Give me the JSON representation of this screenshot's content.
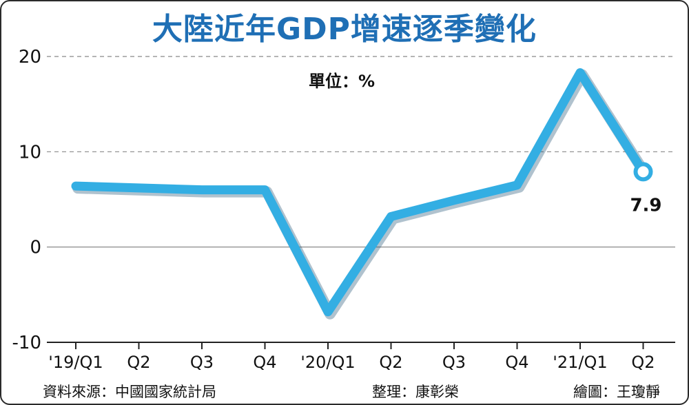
{
  "chart_data": {
    "type": "line",
    "title": "大陸近年GDP增速逐季變化",
    "unit_label": "單位：%",
    "categories": [
      "'19/Q1",
      "Q2",
      "Q3",
      "Q4",
      "'20/Q1",
      "Q2",
      "Q3",
      "Q4",
      "'21/Q1",
      "Q2"
    ],
    "series": [
      {
        "values": [
          6.4,
          6.2,
          6.0,
          6.0,
          -6.8,
          3.2,
          4.9,
          6.5,
          18.3,
          7.9
        ]
      }
    ],
    "yticks": [
      "20",
      "10",
      "0",
      "-10"
    ],
    "ylim": [
      -10,
      20
    ],
    "data_labels": [
      {
        "index": 9,
        "text": "7.9"
      }
    ],
    "grid": "horizontal dashed at 10 and 20",
    "line_color": "#33aee3"
  },
  "footer": {
    "source": "資料來源：中國國家統計局",
    "editor": "整理：康彰榮",
    "illustrator": "繪圖：王瓊靜"
  }
}
